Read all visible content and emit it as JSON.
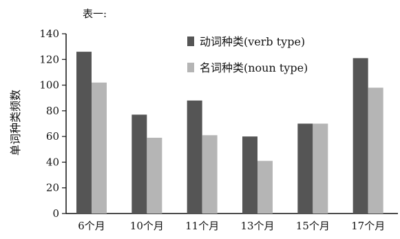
{
  "chart_data": {
    "type": "bar",
    "title": "表一:",
    "xlabel": "",
    "ylabel": "单词种类频数",
    "categories": [
      "6个月",
      "10个月",
      "11个月",
      "13个月",
      "15个月",
      "17个月"
    ],
    "series": [
      {
        "name": "动词种类(verb type)",
        "values": [
          126,
          77,
          88,
          60,
          70,
          121
        ],
        "color": "#555555"
      },
      {
        "name": "名词种类(noun type)",
        "values": [
          102,
          59,
          61,
          41,
          70,
          98
        ],
        "color": "#b5b5b5"
      }
    ],
    "ylim": [
      0,
      140
    ],
    "yticks": [
      0,
      20,
      40,
      60,
      80,
      100,
      120,
      140
    ],
    "grid": false,
    "legend_position": "top-right"
  }
}
